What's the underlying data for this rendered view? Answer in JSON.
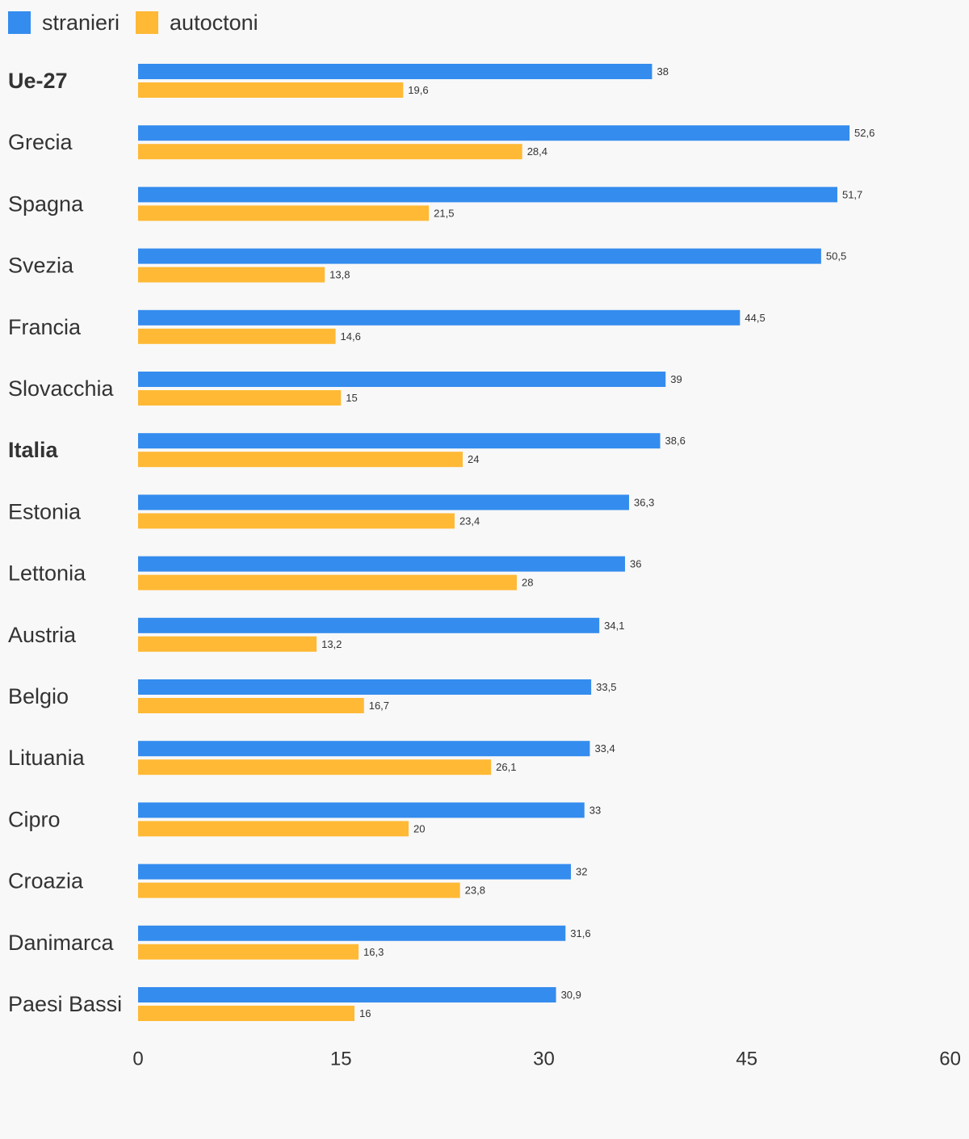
{
  "chart_data": {
    "type": "bar",
    "orientation": "horizontal",
    "categories": [
      "Ue-27",
      "Grecia",
      "Spagna",
      "Svezia",
      "Francia",
      "Slovacchia",
      "Italia",
      "Estonia",
      "Lettonia",
      "Austria",
      "Belgio",
      "Lituania",
      "Cipro",
      "Croazia",
      "Danimarca",
      "Paesi Bassi"
    ],
    "bold_categories": [
      "Ue-27",
      "Italia"
    ],
    "series": [
      {
        "name": "stranieri",
        "color": "#348cee",
        "values": [
          38,
          52.6,
          51.7,
          50.5,
          44.5,
          39,
          38.6,
          36.3,
          36,
          34.1,
          33.5,
          33.4,
          33,
          32,
          31.6,
          30.9
        ],
        "labels": [
          "38",
          "52,6",
          "51,7",
          "50,5",
          "44,5",
          "39",
          "38,6",
          "36,3",
          "36",
          "34,1",
          "33,5",
          "33,4",
          "33",
          "32",
          "31,6",
          "30,9"
        ]
      },
      {
        "name": "autoctoni",
        "color": "#ffb935",
        "values": [
          19.6,
          28.4,
          21.5,
          13.8,
          14.6,
          15,
          24,
          23.4,
          28,
          13.2,
          16.7,
          26.1,
          20,
          23.8,
          16.3,
          16
        ],
        "labels": [
          "19,6",
          "28,4",
          "21,5",
          "13,8",
          "14,6",
          "15",
          "24",
          "23,4",
          "28",
          "13,2",
          "16,7",
          "26,1",
          "20",
          "23,8",
          "16,3",
          "16"
        ]
      }
    ],
    "xlim": [
      0,
      60
    ],
    "xticks": [
      0,
      15,
      30,
      45,
      60
    ],
    "xtick_labels": [
      "0",
      "15",
      "30",
      "45",
      "60"
    ],
    "legend": "top-left",
    "grid": false,
    "title": "",
    "xlabel": "",
    "ylabel": ""
  }
}
